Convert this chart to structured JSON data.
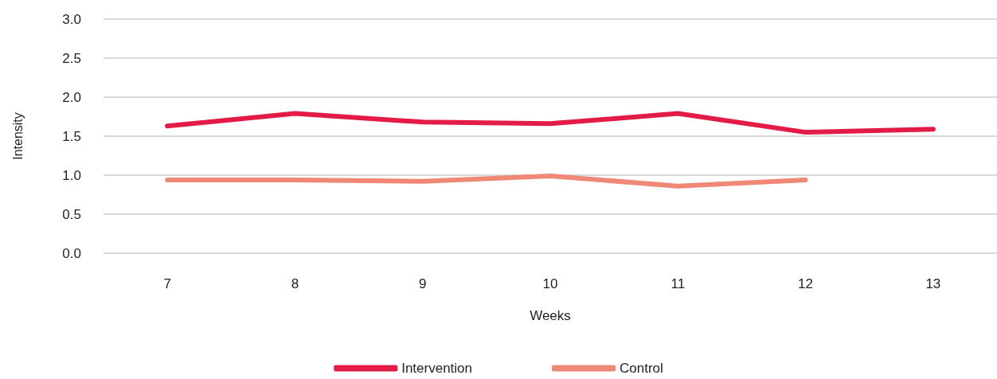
{
  "chart_data": {
    "type": "line",
    "xlabel": "Weeks",
    "ylabel": "Intensity",
    "categories": [
      "7",
      "8",
      "9",
      "10",
      "11",
      "12",
      "13"
    ],
    "series": [
      {
        "name": "Intervention",
        "color": "#e31c47",
        "values": [
          1.63,
          1.79,
          1.68,
          1.66,
          1.79,
          1.55,
          1.59
        ]
      },
      {
        "name": "Control",
        "color": "#f08878",
        "values": [
          0.94,
          0.94,
          0.92,
          0.99,
          0.86,
          0.94,
          null
        ]
      }
    ],
    "ylim": [
      0,
      3
    ],
    "yticks": [
      {
        "value": 0,
        "label": "0.0"
      },
      {
        "value": 0.5,
        "label": "0.5"
      },
      {
        "value": 1,
        "label": "1.0"
      },
      {
        "value": 1.5,
        "label": "1.5"
      },
      {
        "value": 2,
        "label": "2.0"
      },
      {
        "value": 2.5,
        "label": "2.5"
      },
      {
        "value": 3,
        "label": "3.0"
      }
    ],
    "grid": "y",
    "legend": "bottom",
    "marker": "none",
    "line_style": "solid"
  }
}
